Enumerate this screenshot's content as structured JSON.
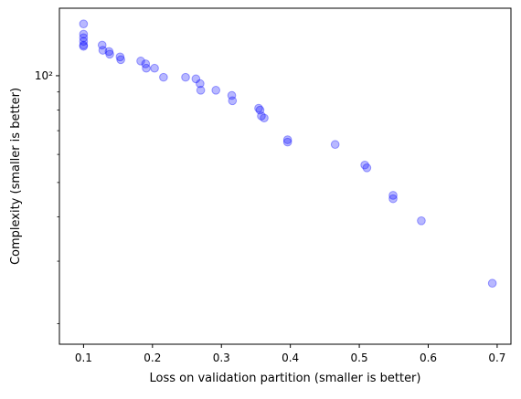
{
  "chart_data": {
    "type": "scatter",
    "title": "",
    "xlabel": "Loss on validation partition (smaller is better)",
    "ylabel": "Complexity (smaller is better)",
    "y_scale": "log",
    "xlim": [
      0.065,
      0.72
    ],
    "ylim": [
      17.5,
      155
    ],
    "x_ticks": [
      0.1,
      0.2,
      0.3,
      0.4,
      0.5,
      0.6,
      0.7
    ],
    "x_tick_labels": [
      "0.1",
      "0.2",
      "0.3",
      "0.4",
      "0.5",
      "0.6",
      "0.7"
    ],
    "y_major_ticks": [
      100
    ],
    "y_major_tick_labels": [
      "10²"
    ],
    "y_minor_ticks": [
      20,
      30,
      40,
      50,
      60,
      70,
      80,
      90
    ],
    "grid": false,
    "legend": false,
    "marker_color": "#0000ff",
    "marker_alpha": 0.28,
    "points": [
      {
        "x": 0.1,
        "y": 140
      },
      {
        "x": 0.1,
        "y": 131
      },
      {
        "x": 0.1,
        "y": 128
      },
      {
        "x": 0.1,
        "y": 125
      },
      {
        "x": 0.1,
        "y": 122
      },
      {
        "x": 0.1,
        "y": 121
      },
      {
        "x": 0.127,
        "y": 122
      },
      {
        "x": 0.128,
        "y": 118
      },
      {
        "x": 0.137,
        "y": 117
      },
      {
        "x": 0.138,
        "y": 115
      },
      {
        "x": 0.153,
        "y": 113
      },
      {
        "x": 0.154,
        "y": 111
      },
      {
        "x": 0.183,
        "y": 110
      },
      {
        "x": 0.19,
        "y": 108
      },
      {
        "x": 0.191,
        "y": 105
      },
      {
        "x": 0.203,
        "y": 105
      },
      {
        "x": 0.216,
        "y": 99
      },
      {
        "x": 0.248,
        "y": 99
      },
      {
        "x": 0.263,
        "y": 98
      },
      {
        "x": 0.269,
        "y": 95
      },
      {
        "x": 0.27,
        "y": 91
      },
      {
        "x": 0.292,
        "y": 91
      },
      {
        "x": 0.315,
        "y": 88
      },
      {
        "x": 0.316,
        "y": 85
      },
      {
        "x": 0.354,
        "y": 81
      },
      {
        "x": 0.356,
        "y": 80
      },
      {
        "x": 0.358,
        "y": 77
      },
      {
        "x": 0.362,
        "y": 76
      },
      {
        "x": 0.396,
        "y": 66
      },
      {
        "x": 0.396,
        "y": 65
      },
      {
        "x": 0.465,
        "y": 64
      },
      {
        "x": 0.508,
        "y": 56
      },
      {
        "x": 0.511,
        "y": 55
      },
      {
        "x": 0.549,
        "y": 46
      },
      {
        "x": 0.549,
        "y": 45
      },
      {
        "x": 0.59,
        "y": 39
      },
      {
        "x": 0.693,
        "y": 26
      }
    ]
  }
}
